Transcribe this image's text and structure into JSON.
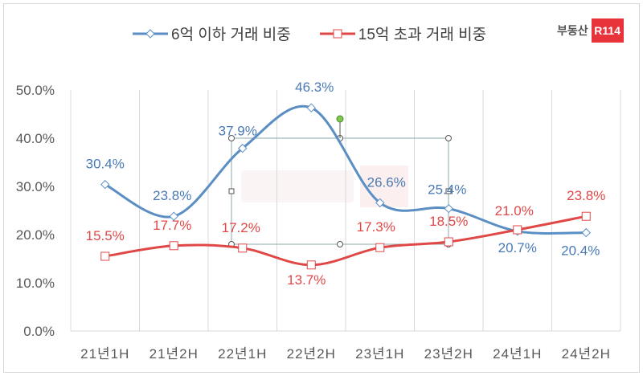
{
  "logo": {
    "text": "부동산",
    "mark": "R114",
    "brand_color": "#e8333b"
  },
  "watermark": "부동산 R114",
  "chart_data": {
    "type": "line",
    "title": "",
    "xlabel": "",
    "ylabel": "",
    "categories": [
      "21년1H",
      "21년2H",
      "22년1H",
      "22년2H",
      "23년1H",
      "23년2H",
      "24년1H",
      "24년2H"
    ],
    "ylim": [
      0,
      50
    ],
    "yticks": [
      "0.0%",
      "10.0%",
      "20.0%",
      "30.0%",
      "40.0%",
      "50.0%"
    ],
    "ytick_values": [
      0,
      10,
      20,
      30,
      40,
      50
    ],
    "grid": "vertical category separators",
    "legend": "top",
    "smooth": true,
    "series": [
      {
        "name": "6억 이하 거래 비중",
        "color": "#5b8fc4",
        "label_color": "#4a7ab5",
        "marker": "diamond",
        "values": [
          30.4,
          23.8,
          37.9,
          46.3,
          26.6,
          25.4,
          20.7,
          20.4
        ],
        "labels": [
          "30.4%",
          "23.8%",
          "37.9%",
          "46.3%",
          "26.6%",
          "25.4%",
          "20.7%",
          "20.4%"
        ]
      },
      {
        "name": "15억 초과 거래 비중",
        "color": "#e04848",
        "label_color": "#e04848",
        "marker": "square",
        "values": [
          15.5,
          17.7,
          17.2,
          13.7,
          17.3,
          18.5,
          21.0,
          23.8
        ],
        "labels": [
          "15.5%",
          "17.7%",
          "17.2%",
          "13.7%",
          "17.3%",
          "18.5%",
          "21.0%",
          "23.8%"
        ]
      }
    ]
  }
}
